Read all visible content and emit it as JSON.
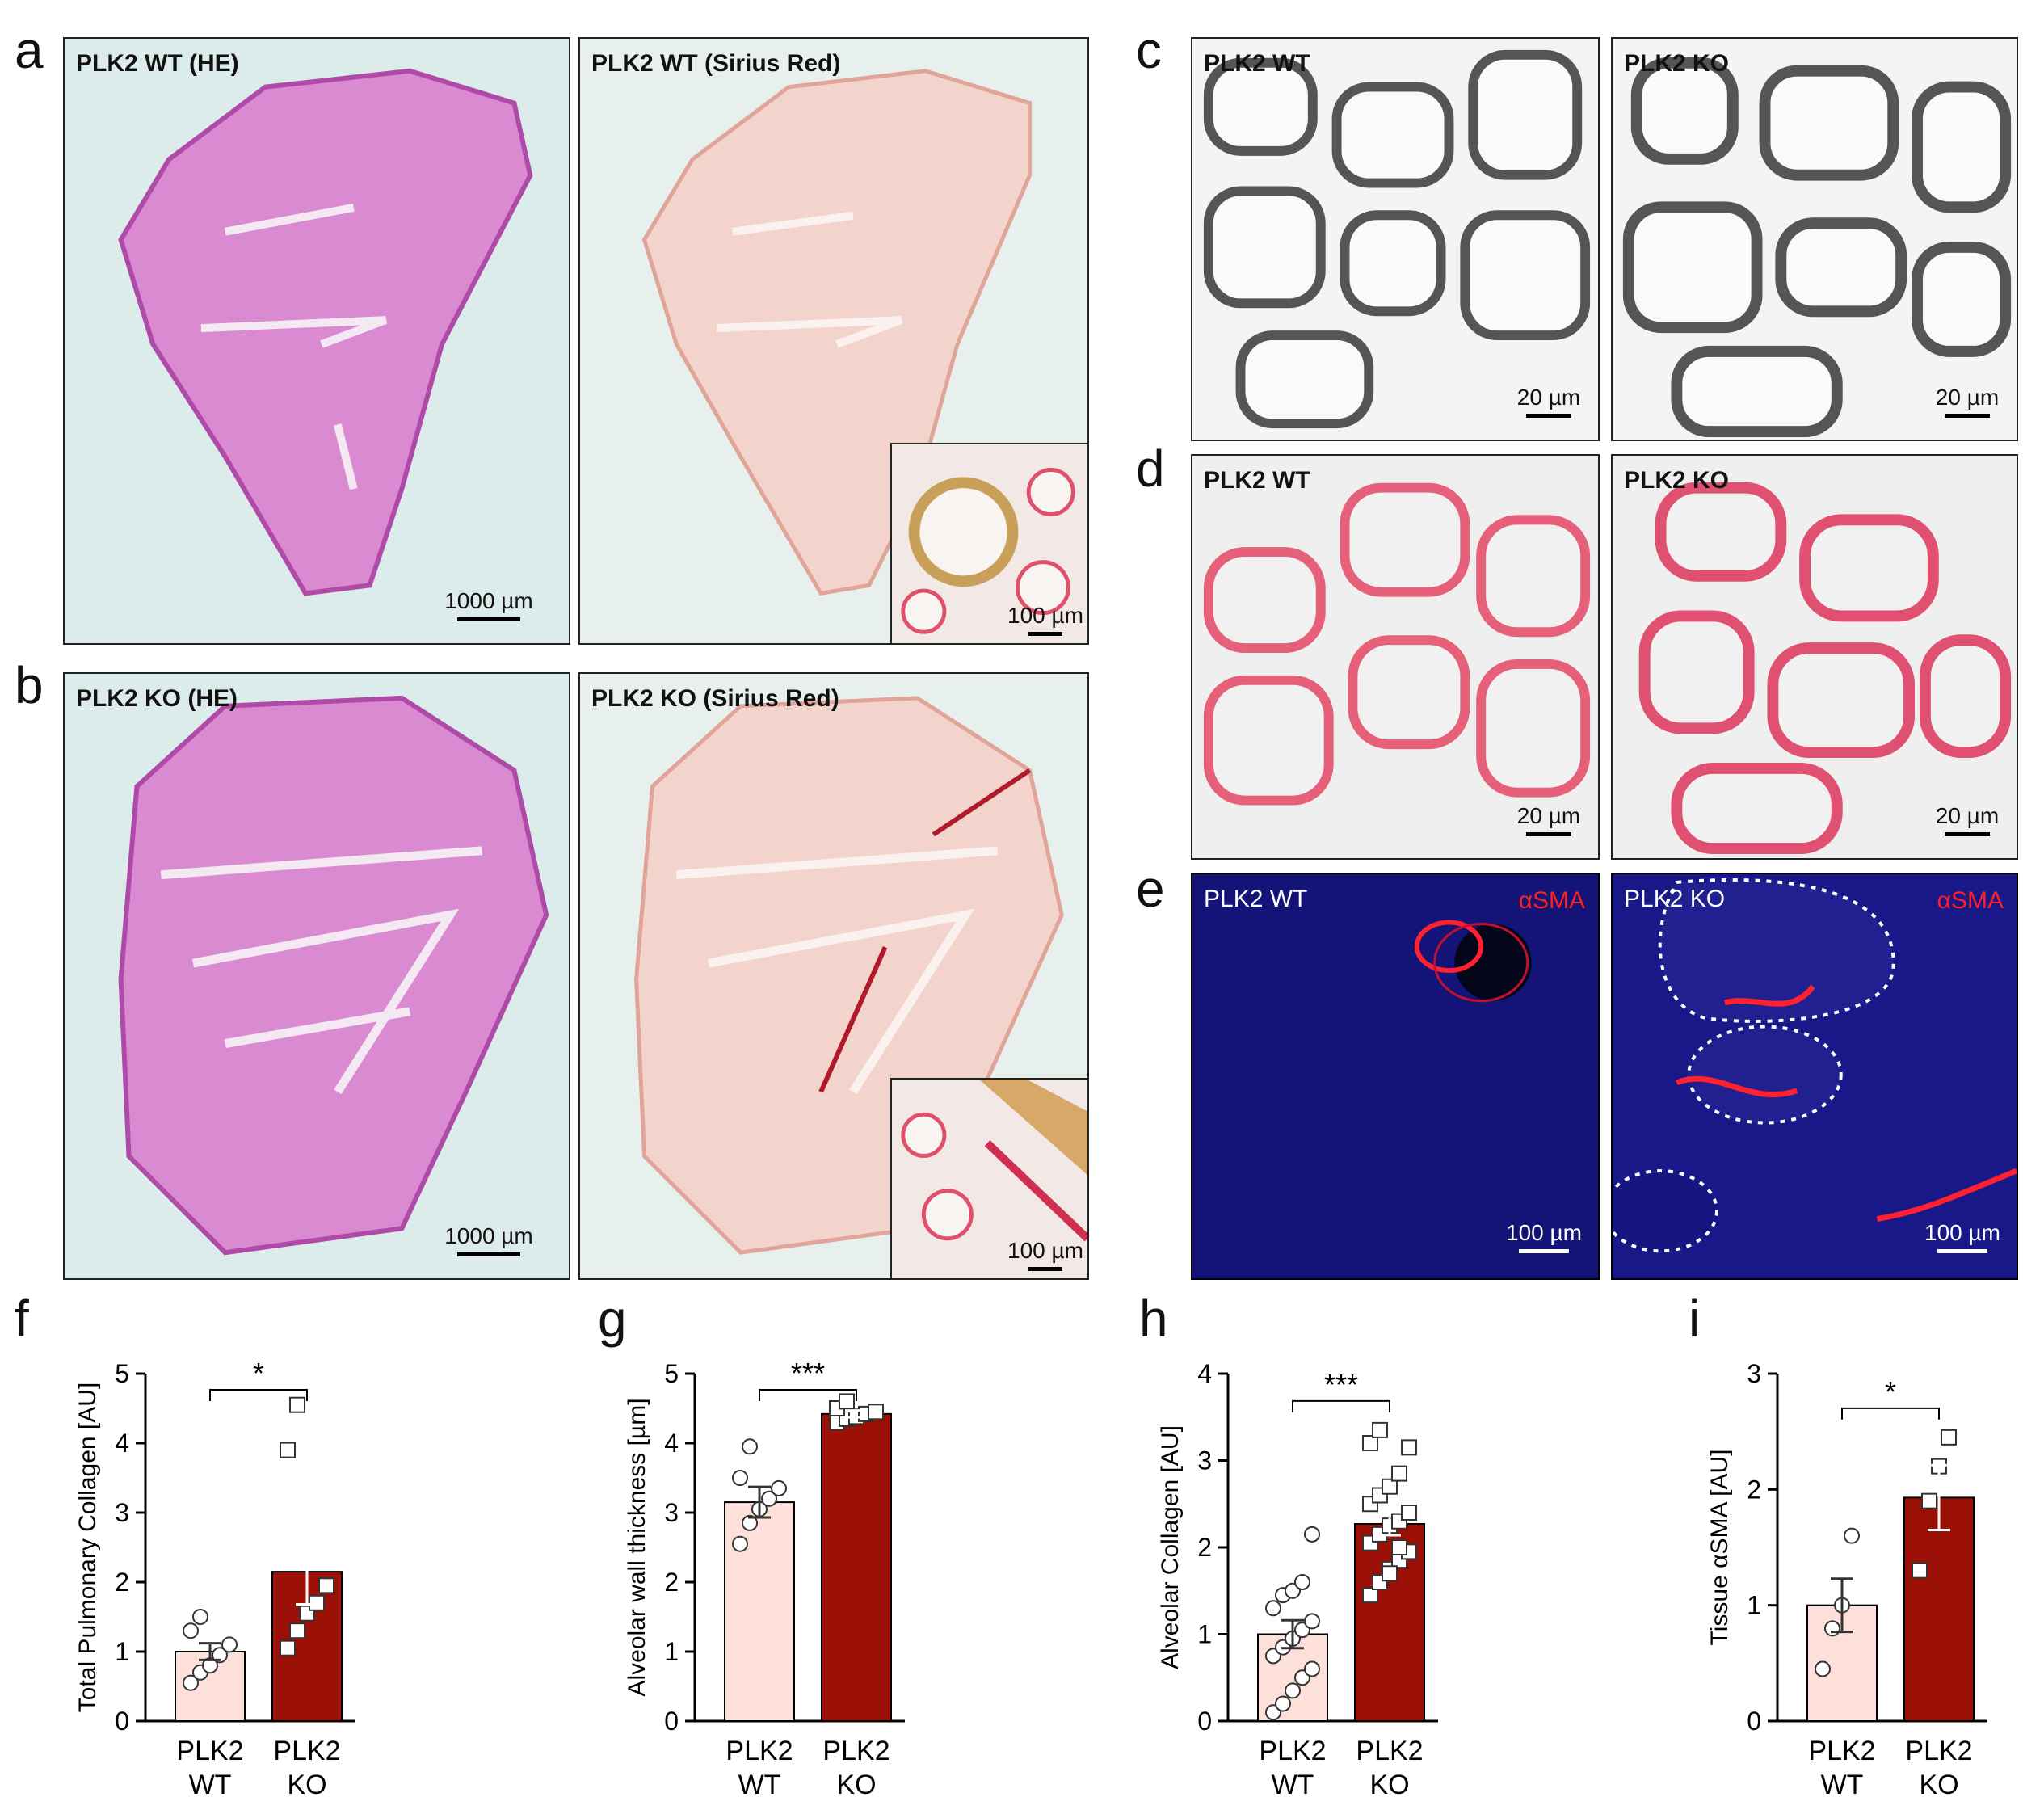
{
  "panels": {
    "a": {
      "letter": "a",
      "left_title": "PLK2 WT (HE)",
      "right_title": "PLK2 WT (Sirius Red)",
      "left_scale": "1000 µm",
      "inset_scale": "100 µm"
    },
    "b": {
      "letter": "b",
      "left_title": "PLK2 KO (HE)",
      "right_title": "PLK2 KO (Sirius Red)",
      "left_scale": "1000 µm",
      "inset_scale": "100 µm"
    },
    "c": {
      "letter": "c",
      "left_title": "PLK2 WT",
      "right_title": "PLK2 KO",
      "scale": "20 µm"
    },
    "d": {
      "letter": "d",
      "left_title": "PLK2 WT",
      "right_title": "PLK2 KO",
      "scale": "20 µm"
    },
    "e": {
      "letter": "e",
      "left_title": "PLK2 WT",
      "right_title": "PLK2 KO",
      "stain": "αSMA",
      "scale": "100 µm"
    }
  },
  "colors": {
    "he_bg": "#dcecea",
    "he_tissue": "#c860b8",
    "sirius_bg": "#e8f0ee",
    "sirius_tissue": "#f0c8c0",
    "wt_bar": "#fde0da",
    "ko_bar": "#9b1006",
    "fluor_bg": "#0a0a50",
    "fluor_red": "#ff2030"
  },
  "chart_data": [
    {
      "letter": "f",
      "type": "bar",
      "ylabel": "Total Pulmonary Collagen [AU]",
      "ylim": [
        0,
        5
      ],
      "yticks": [
        0,
        1,
        2,
        3,
        4,
        5
      ],
      "categories": [
        "PLK2\nWT",
        "PLK2\nKO"
      ],
      "values": [
        1.0,
        2.15
      ],
      "errors": [
        0.12,
        0.47
      ],
      "points": [
        [
          0.55,
          0.7,
          0.8,
          0.95,
          1.1,
          1.3,
          1.5
        ],
        [
          1.05,
          1.3,
          1.55,
          1.7,
          1.95,
          3.9,
          4.55
        ]
      ],
      "significance": "*"
    },
    {
      "letter": "g",
      "type": "bar",
      "ylabel": "Alveolar wall thickness [µm]",
      "ylim": [
        0,
        5
      ],
      "yticks": [
        0,
        1,
        2,
        3,
        4,
        5
      ],
      "categories": [
        "PLK2\nWT",
        "PLK2\nKO"
      ],
      "values": [
        3.15,
        4.42
      ],
      "errors": [
        0.22,
        0.05
      ],
      "points": [
        [
          2.55,
          2.85,
          3.05,
          3.2,
          3.35,
          3.5,
          3.95
        ],
        [
          4.3,
          4.35,
          4.38,
          4.42,
          4.45,
          4.5,
          4.6
        ]
      ],
      "significance": "***"
    },
    {
      "letter": "h",
      "type": "bar",
      "ylabel": "Alveolar Collagen [AU]",
      "ylim": [
        0,
        4
      ],
      "yticks": [
        0,
        1,
        2,
        3,
        4
      ],
      "categories": [
        "PLK2\nWT",
        "PLK2\nKO"
      ],
      "values": [
        1.0,
        2.27
      ],
      "errors": [
        0.16,
        0.13
      ],
      "points": [
        [
          0.1,
          0.2,
          0.35,
          0.5,
          0.6,
          0.75,
          0.85,
          0.95,
          1.05,
          1.15,
          1.3,
          1.45,
          1.5,
          1.6,
          2.15
        ],
        [
          1.45,
          1.6,
          1.75,
          1.85,
          1.95,
          2.05,
          2.15,
          2.25,
          2.3,
          2.4,
          2.5,
          2.6,
          2.7,
          2.85,
          3.15,
          3.2,
          3.35,
          1.7,
          2.0
        ]
      ],
      "significance": "***"
    },
    {
      "letter": "i",
      "type": "bar",
      "ylabel": "Tissue αSMA [AU]",
      "ylim": [
        0,
        3
      ],
      "yticks": [
        0,
        1,
        2,
        3
      ],
      "categories": [
        "PLK2\nWT",
        "PLK2\nKO"
      ],
      "values": [
        1.0,
        1.93
      ],
      "errors": [
        0.23,
        0.28
      ],
      "points": [
        [
          0.45,
          0.8,
          1.0,
          1.6
        ],
        [
          1.3,
          1.9,
          2.2,
          2.45
        ]
      ],
      "significance": "*"
    }
  ]
}
